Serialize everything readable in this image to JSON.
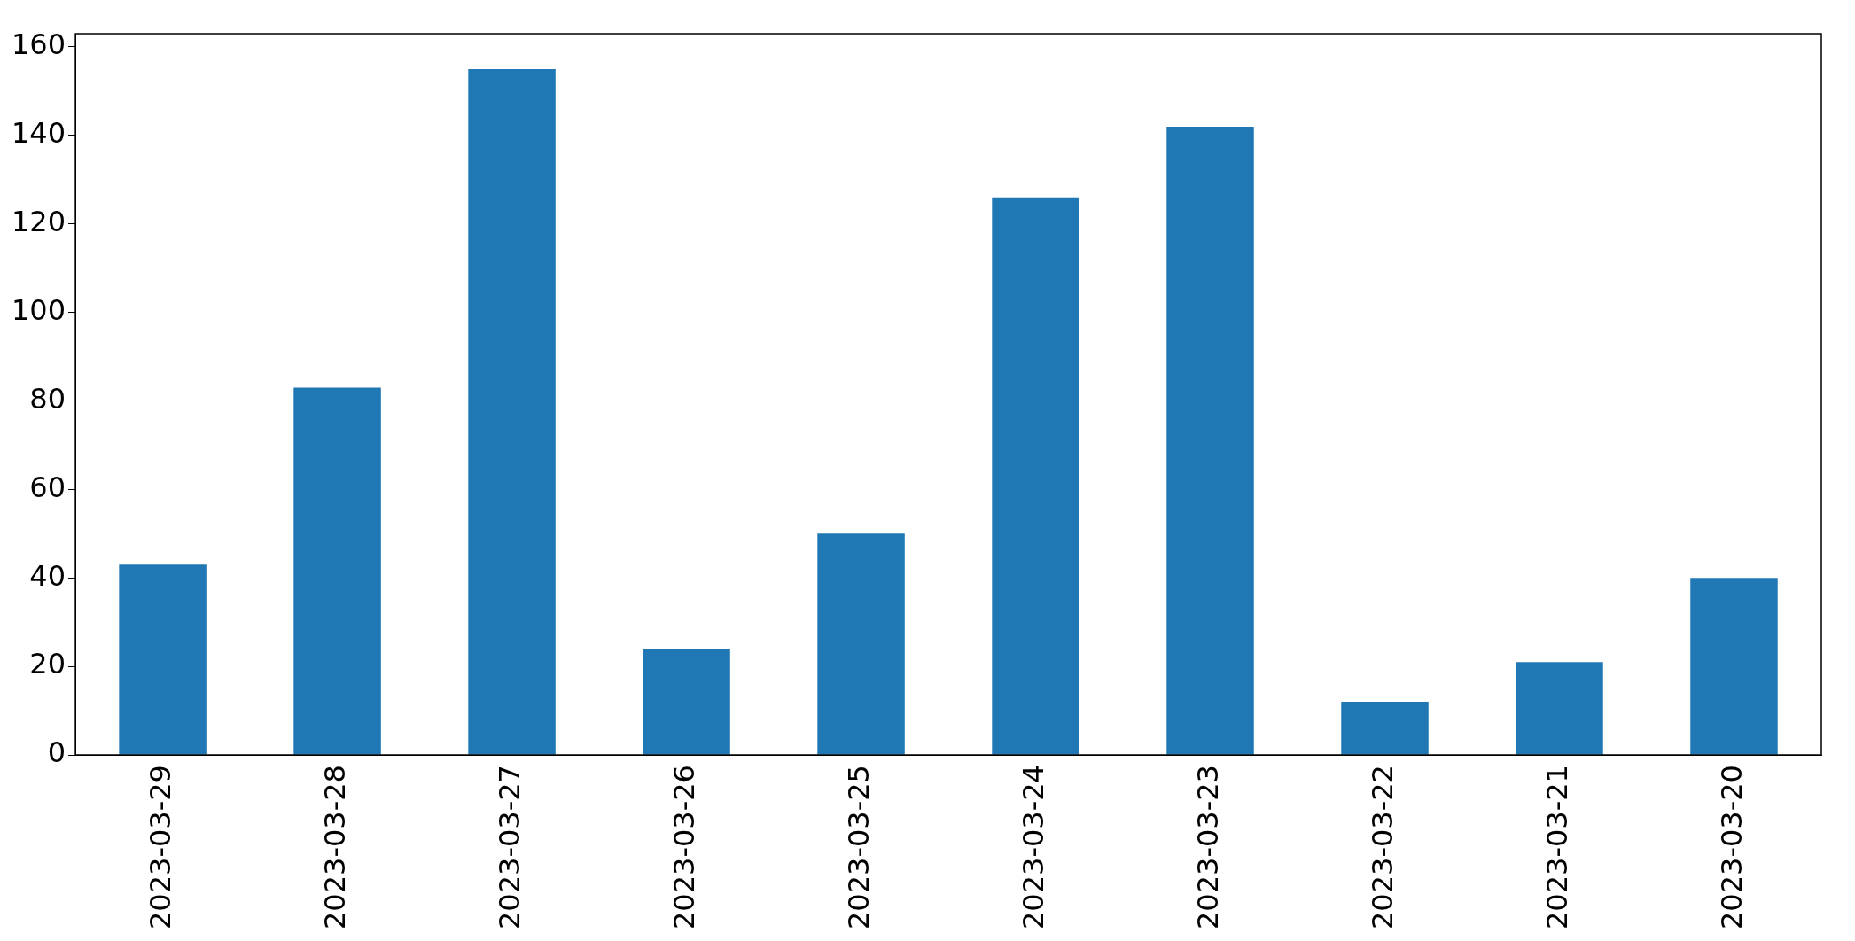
{
  "chart_data": {
    "type": "bar",
    "categories": [
      "2023-03-29",
      "2023-03-28",
      "2023-03-27",
      "2023-03-26",
      "2023-03-25",
      "2023-03-24",
      "2023-03-23",
      "2023-03-22",
      "2023-03-21",
      "2023-03-20"
    ],
    "values": [
      43,
      83,
      155,
      24,
      50,
      126,
      142,
      12,
      21,
      40
    ],
    "color": "#1f77b4",
    "ylim": [
      0,
      163
    ],
    "yticks": [
      0,
      20,
      40,
      60,
      80,
      100,
      120,
      140,
      160
    ],
    "grid": false,
    "legend": false
  }
}
